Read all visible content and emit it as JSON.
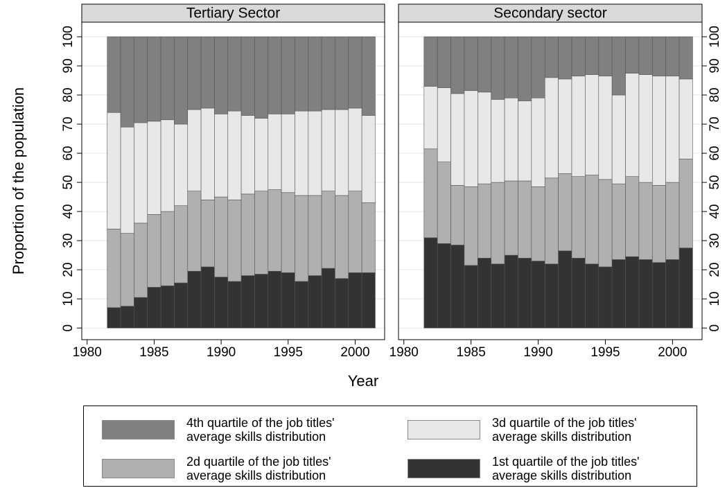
{
  "chart_data": {
    "type": "bar",
    "stacked": true,
    "x_label": "Year",
    "y_label": "Proportion of the population",
    "x": [
      1982,
      1983,
      1984,
      1985,
      1986,
      1987,
      1988,
      1989,
      1990,
      1991,
      1992,
      1993,
      1994,
      1995,
      1996,
      1997,
      1998,
      1999,
      2000,
      2001
    ],
    "xlim": [
      1979.6,
      2002.2
    ],
    "xticks": [
      1980,
      1985,
      1990,
      1995,
      2000
    ],
    "ylim": [
      -4,
      105
    ],
    "yticks": [
      0,
      10,
      20,
      30,
      40,
      50,
      60,
      70,
      80,
      90,
      100
    ],
    "grid": true,
    "series": [
      {
        "name": "1st quartile of the job titles'\naverage skills distribution",
        "color": "#333333"
      },
      {
        "name": "2d quartile of the job titles'\naverage skills distribution",
        "color": "#b0b0b0"
      },
      {
        "name": "3d quartile of the job titles'\naverage skills distribution",
        "color": "#e8e8e8"
      },
      {
        "name": "4th quartile of the job titles'\naverage skills distribution",
        "color": "#808080"
      }
    ],
    "panels": [
      {
        "title": "Tertiary Sector",
        "values": [
          [
            7,
            7.5,
            10.5,
            14,
            14.5,
            15.5,
            19.5,
            21,
            17.5,
            16,
            18,
            18.5,
            19.5,
            19,
            16,
            18,
            20.5,
            17,
            19,
            19
          ],
          [
            27,
            25,
            25.5,
            25,
            25.5,
            26.5,
            27.5,
            23,
            27.5,
            28,
            28,
            28.5,
            28,
            27.5,
            29.5,
            27.5,
            26.5,
            28.5,
            28,
            24
          ],
          [
            40,
            36.5,
            34.5,
            32,
            31.5,
            28,
            28,
            31.5,
            28.5,
            30.5,
            27,
            25,
            26,
            27,
            29,
            29,
            28,
            29.5,
            28.5,
            30
          ],
          [
            26,
            31,
            29.5,
            29,
            28.5,
            30,
            25,
            24.5,
            26.5,
            25.5,
            27,
            28,
            26.5,
            26.5,
            25.5,
            25.5,
            25,
            25,
            24.5,
            27
          ]
        ]
      },
      {
        "title": "Secondary sector",
        "values": [
          [
            31,
            29,
            28.5,
            21.5,
            24,
            22,
            25,
            24,
            23,
            22,
            26.5,
            24,
            22,
            21,
            23.5,
            24.5,
            23.5,
            22.5,
            23.5,
            27.5
          ],
          [
            30.5,
            28,
            20.5,
            27,
            25.5,
            28,
            25.5,
            26.5,
            25.5,
            29.5,
            26.5,
            28,
            30.5,
            30,
            26,
            27.5,
            26.5,
            26.5,
            26.5,
            30.5
          ],
          [
            21.5,
            25.5,
            31.5,
            33,
            31.5,
            28.5,
            28.5,
            27.5,
            30.5,
            34.5,
            32.5,
            34.5,
            34.5,
            35.5,
            30.5,
            35.5,
            37,
            37.5,
            36.5,
            27.5
          ],
          [
            17,
            17.5,
            19.5,
            18.5,
            19,
            21.5,
            21,
            22,
            21,
            14,
            14.5,
            13.5,
            13,
            13.5,
            20,
            12.5,
            13,
            13.5,
            13.5,
            14.5
          ]
        ]
      }
    ]
  }
}
